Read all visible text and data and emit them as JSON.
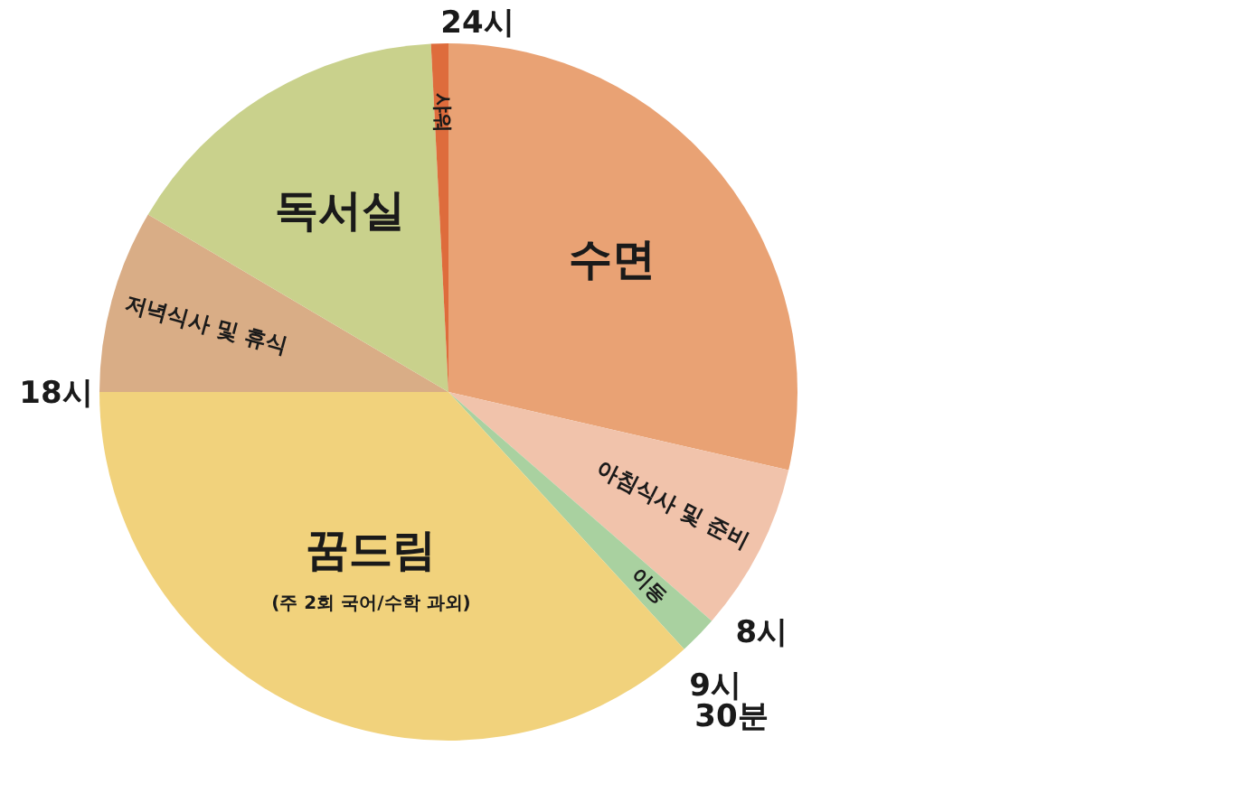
{
  "chart_data": {
    "type": "pie",
    "categories": [
      "수면",
      "아침식사 및 준비",
      "이동",
      "꿈드림",
      "저녁식사 및 휴식",
      "독서실",
      "샤워"
    ],
    "values": [
      28.6,
      7.8,
      1.8,
      36.8,
      8.5,
      15.7,
      0.8
    ],
    "colors": [
      "#e9a274",
      "#f1c3ab",
      "#a9d1a0",
      "#f1d27c",
      "#d9ad86",
      "#c9d18c",
      "#de6c3c"
    ],
    "annotations": [
      "(주 2회 국어/수학 과외)",
      "24시",
      "8시",
      "9시 30분",
      "18시"
    ]
  }
}
